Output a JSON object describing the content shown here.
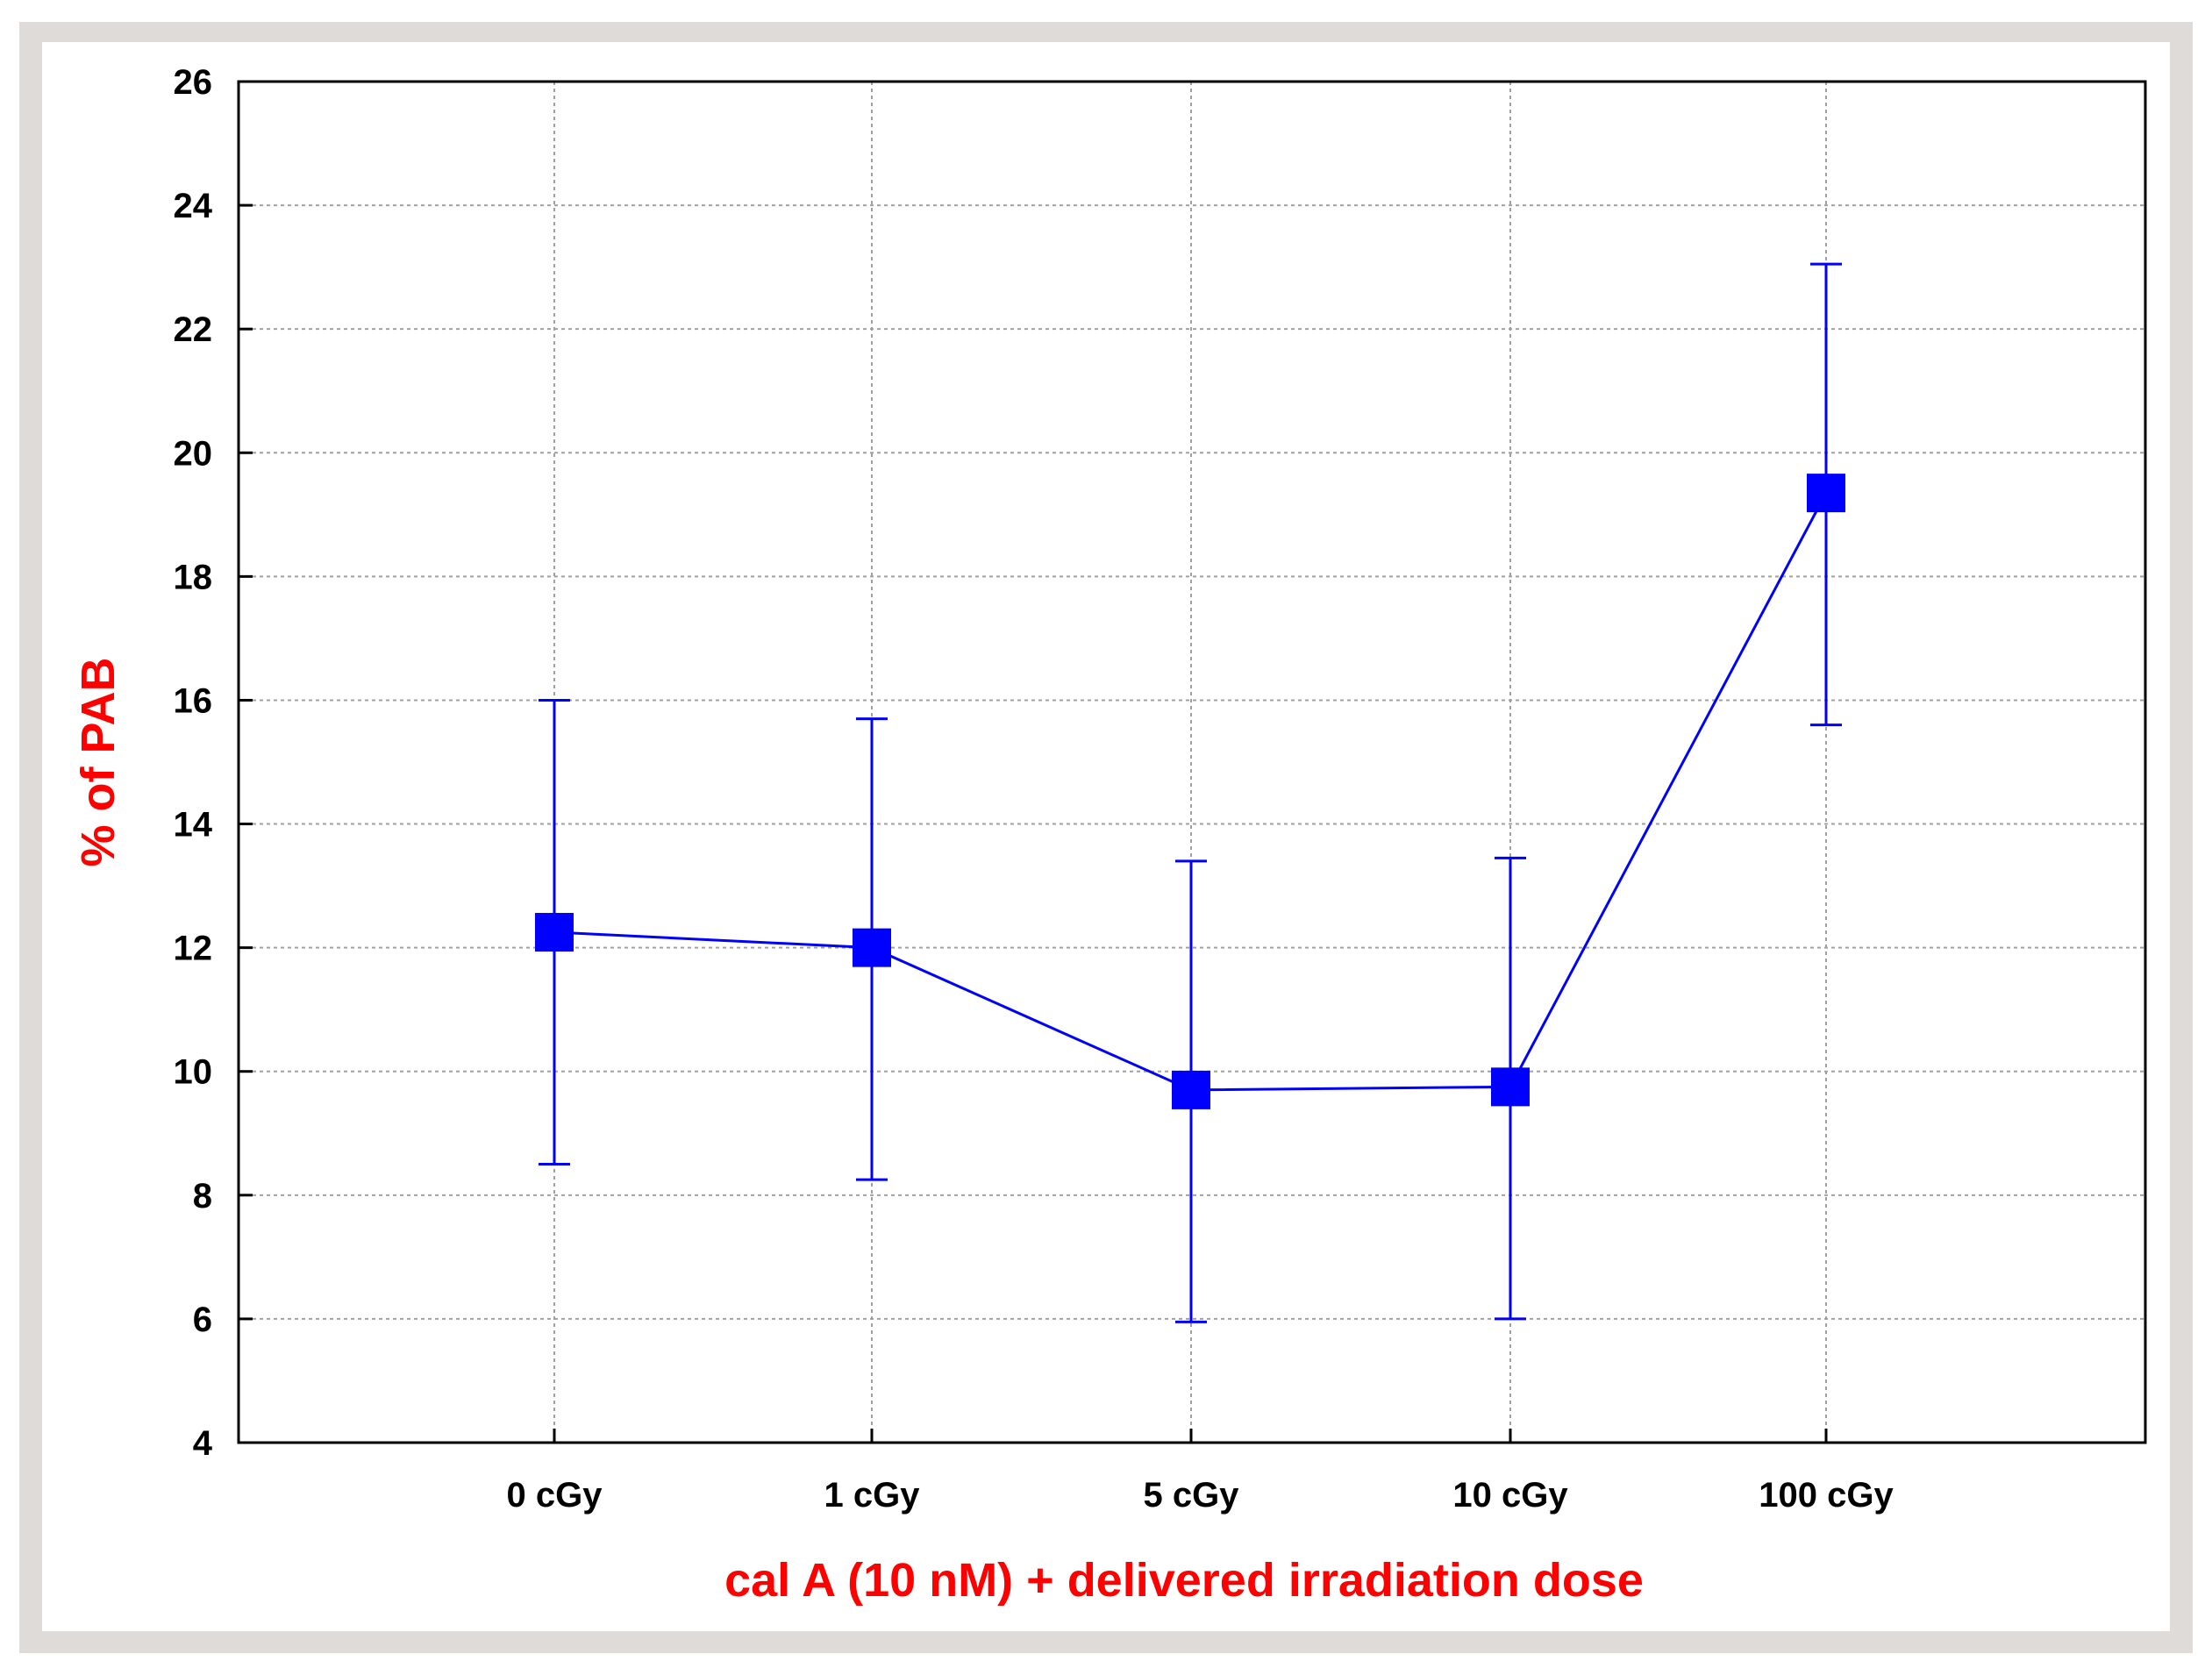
{
  "chart_data": {
    "type": "line",
    "title": "",
    "xlabel": "cal A (10 nM) + delivered irradiation dose",
    "ylabel": "% of PAB",
    "categories": [
      "0 cGy",
      "1 cGy",
      "5 cGy",
      "10 cGy",
      "100 cGy"
    ],
    "series": [
      {
        "values": [
          12.25,
          12.0,
          9.7,
          9.75,
          19.35
        ],
        "error_low": [
          8.5,
          8.25,
          5.95,
          6.0,
          15.6
        ],
        "error_high": [
          16.0,
          15.7,
          13.4,
          13.45,
          23.05
        ]
      }
    ],
    "ylim": [
      4,
      26
    ],
    "yticks": [
      4,
      6,
      8,
      10,
      12,
      14,
      16,
      18,
      20,
      22,
      24,
      26
    ],
    "grid": true,
    "legend": "none",
    "marker": "square",
    "colors": {
      "series": "#0000ff",
      "axis_title": "#ff0000",
      "frame_background": "#dedbd9",
      "plot_background": "#ffffff",
      "grid": "#a0a0a0"
    }
  }
}
